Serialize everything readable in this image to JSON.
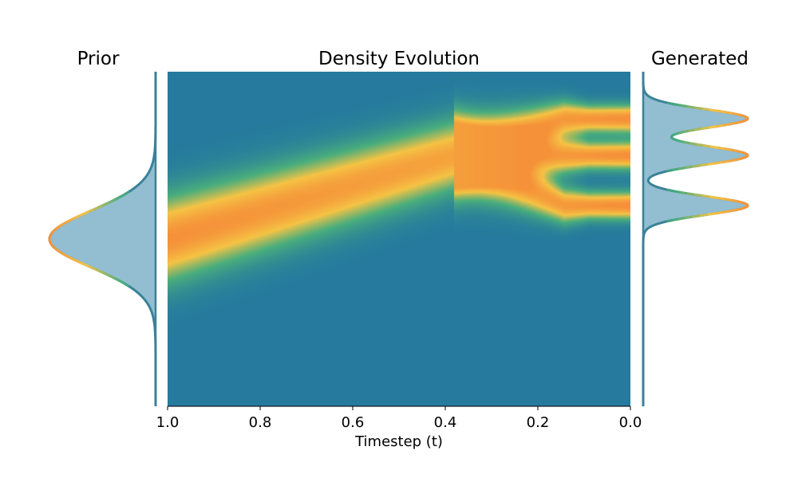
{
  "titles": {
    "left": "Prior",
    "center": "Density Evolution",
    "right": "Generated"
  },
  "colors": {
    "background": "#257a9e",
    "low": "#257a9e",
    "mid": "#4aae7c",
    "high": "#f5c344",
    "peak": "#f59139",
    "marginal_fill": "#93bdd0",
    "marginal_line": "#3a8299"
  },
  "chart_data": [
    {
      "type": "heatmap",
      "title": "Density Evolution",
      "xlabel": "Timestep (t)",
      "ylabel": "",
      "x_reversed": true,
      "xlim": [
        1.0,
        0.0
      ],
      "ylim": [
        -1.0,
        1.0
      ],
      "xticks": [
        "1.0",
        "0.8",
        "0.6",
        "0.4",
        "0.2",
        "0.0"
      ],
      "xtick_values": [
        1.0,
        0.8,
        0.6,
        0.4,
        0.2,
        0.0
      ],
      "grid": false,
      "colormap": [
        "#257a9e",
        "#4aae7c",
        "#f5c344",
        "#f59139"
      ],
      "density_at_t1": {
        "distribution": "gaussian",
        "mean": 0.0,
        "std": 0.24
      },
      "density_at_t0": {
        "distribution": "gaussian-mixture",
        "means": [
          0.72,
          0.5,
          0.2
        ],
        "std": 0.05,
        "weights": [
          1,
          1,
          1
        ]
      },
      "split_t": 0.38
    },
    {
      "type": "area",
      "title": "Prior",
      "orientation": "horizontal",
      "x": [
        -0.8,
        -0.6,
        -0.48,
        -0.4,
        -0.3,
        -0.2,
        -0.1,
        0.0,
        0.1,
        0.2,
        0.3,
        0.4,
        0.48,
        0.6,
        0.8
      ],
      "values": [
        0.0,
        0.05,
        0.14,
        0.25,
        0.46,
        0.71,
        0.92,
        1.0,
        0.92,
        0.71,
        0.46,
        0.25,
        0.14,
        0.05,
        0.0
      ]
    },
    {
      "type": "area",
      "title": "Generated",
      "orientation": "horizontal",
      "x": [
        -0.15,
        0.0,
        0.1,
        0.15,
        0.2,
        0.28,
        0.35,
        0.42,
        0.5,
        0.58,
        0.65,
        0.72,
        0.8,
        0.9
      ],
      "values": [
        0.0,
        0.02,
        0.2,
        0.6,
        1.0,
        0.6,
        0.18,
        0.55,
        1.0,
        0.55,
        0.18,
        0.6,
        1.0,
        0.15
      ]
    }
  ]
}
